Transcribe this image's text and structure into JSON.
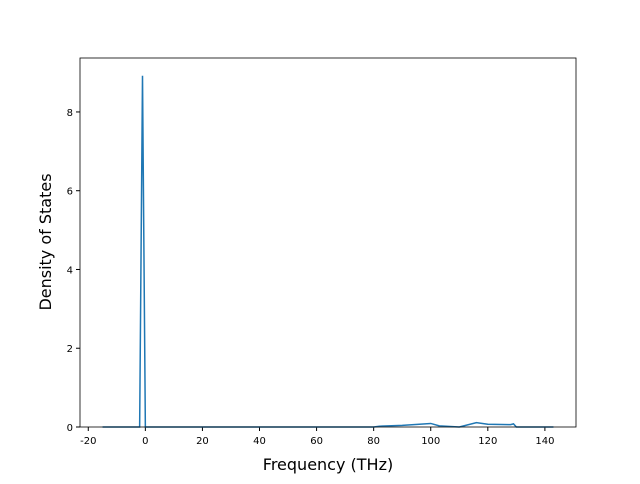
{
  "chart_data": {
    "type": "line",
    "x_label": "Frequency (THz)",
    "y_label": "Density of States",
    "series": [
      {
        "color": "#1f77b4",
        "x": [
          -15,
          -2,
          -1,
          0,
          20,
          40,
          60,
          80,
          82,
          90,
          100,
          103,
          110,
          116,
          120,
          128,
          129,
          130,
          135,
          143
        ],
        "values": [
          0,
          0,
          8.92,
          0,
          0,
          0,
          0,
          0,
          0.02,
          0.04,
          0.09,
          0.03,
          0,
          0.11,
          0.07,
          0.06,
          0.08,
          0,
          0,
          0
        ]
      }
    ],
    "xlim": [
      -22.9,
      150.9
    ],
    "xticks": [
      -20,
      0,
      20,
      40,
      60,
      80,
      100,
      120,
      140
    ],
    "ylim": [
      0,
      9.37
    ],
    "yticks": [
      0,
      2,
      4,
      6,
      8
    ]
  }
}
